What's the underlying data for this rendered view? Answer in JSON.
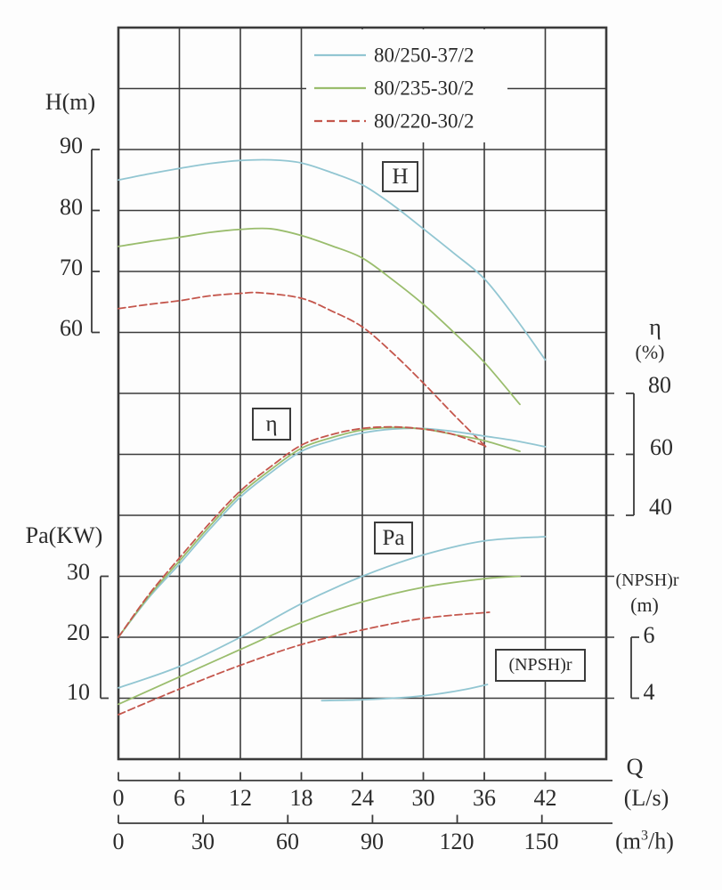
{
  "legend": {
    "items": [
      {
        "label": "80/250-37/2",
        "color": "#92c6d2",
        "dash": "solid"
      },
      {
        "label": "80/235-30/2",
        "color": "#9abd6d",
        "dash": "solid"
      },
      {
        "label": "80/220-30/2",
        "color": "#c4564c",
        "dash": "dashed"
      }
    ]
  },
  "axes": {
    "h": {
      "title": "H(m)",
      "ticks": [
        90,
        80,
        70,
        60
      ]
    },
    "pa": {
      "title": "Pa(KW)",
      "ticks": [
        30,
        20,
        10
      ]
    },
    "eta": {
      "title": "η",
      "unit": "(%)",
      "ticks": [
        80,
        60,
        40
      ]
    },
    "npsh": {
      "title": "(NPSH)r",
      "unit": "(m)",
      "ticks": [
        6,
        4
      ]
    },
    "q_ls": {
      "title": "Q",
      "unit": "(L/s)",
      "ticks": [
        0,
        6,
        12,
        18,
        24,
        30,
        36,
        42
      ]
    },
    "q_m3h": {
      "unit_prefix": "(m",
      "unit_sup": "3",
      "unit_suffix": "/h)",
      "ticks": [
        0,
        30,
        60,
        90,
        120,
        150
      ]
    }
  },
  "curve_labels": {
    "h": "H",
    "eta": "η",
    "pa": "Pa",
    "npsh": "(NPSH)r"
  },
  "chart_data": {
    "type": "line",
    "x_axis": {
      "label": "Q",
      "units": [
        "L/s",
        "m3/h"
      ],
      "range_ls": [
        0,
        48
      ]
    },
    "grid": "on",
    "panels": [
      {
        "key": "h",
        "quantity": "H",
        "unit": "m",
        "axis_ticks": [
          90,
          80,
          70,
          60
        ],
        "series": [
          {
            "model": "80/250-37/2",
            "points": [
              [
                0,
                85
              ],
              [
                3,
                86
              ],
              [
                6,
                86.9
              ],
              [
                9,
                87.7
              ],
              [
                12,
                88.2
              ],
              [
                15,
                88.3
              ],
              [
                18,
                87.8
              ],
              [
                21,
                86.2
              ],
              [
                24,
                84.2
              ],
              [
                27,
                80.9
              ],
              [
                30,
                77
              ],
              [
                33,
                73
              ],
              [
                36,
                68.8
              ],
              [
                39,
                62.5
              ],
              [
                42,
                55.5
              ]
            ]
          },
          {
            "model": "80/235-30/2",
            "points": [
              [
                0,
                74.1
              ],
              [
                3,
                74.9
              ],
              [
                6,
                75.6
              ],
              [
                9,
                76.4
              ],
              [
                12,
                76.9
              ],
              [
                15,
                77
              ],
              [
                18,
                75.9
              ],
              [
                21,
                74.2
              ],
              [
                24,
                72.2
              ],
              [
                27,
                68.6
              ],
              [
                30,
                64.6
              ],
              [
                33,
                60
              ],
              [
                36,
                55.1
              ],
              [
                39.5,
                48.2
              ]
            ]
          },
          {
            "model": "80/220-30/2",
            "points": [
              [
                0,
                63.9
              ],
              [
                3,
                64.6
              ],
              [
                6,
                65.2
              ],
              [
                9,
                66
              ],
              [
                12,
                66.4
              ],
              [
                14,
                66.5
              ],
              [
                18,
                65.6
              ],
              [
                21,
                63.5
              ],
              [
                24,
                60.9
              ],
              [
                27,
                56.6
              ],
              [
                30,
                51.7
              ],
              [
                33,
                46.5
              ],
              [
                36.3,
                41
              ]
            ]
          }
        ]
      },
      {
        "key": "eta",
        "quantity": "η",
        "unit": "%",
        "axis_ticks": [
          80,
          60,
          40
        ],
        "series": [
          {
            "model": "80/250-37/2",
            "points": [
              [
                0,
                0
              ],
              [
                3,
                13
              ],
              [
                6,
                24
              ],
              [
                9,
                35.5
              ],
              [
                12,
                46
              ],
              [
                15,
                54
              ],
              [
                18,
                61
              ],
              [
                21,
                64.5
              ],
              [
                24,
                67
              ],
              [
                27,
                68.3
              ],
              [
                30,
                68.5
              ],
              [
                33,
                67.5
              ],
              [
                36,
                66
              ],
              [
                39,
                64.5
              ],
              [
                42,
                62.5
              ]
            ]
          },
          {
            "model": "80/235-30/2",
            "points": [
              [
                0,
                0
              ],
              [
                3,
                13.5
              ],
              [
                6,
                25
              ],
              [
                9,
                36.5
              ],
              [
                12,
                47
              ],
              [
                15,
                55
              ],
              [
                18,
                62
              ],
              [
                21,
                65.5
              ],
              [
                24,
                68
              ],
              [
                27,
                68.8
              ],
              [
                30,
                68.3
              ],
              [
                33,
                66.5
              ],
              [
                36,
                64.5
              ],
              [
                39.5,
                61
              ]
            ]
          },
          {
            "model": "80/220-30/2",
            "points": [
              [
                0,
                0
              ],
              [
                3,
                14
              ],
              [
                6,
                26
              ],
              [
                9,
                37.5
              ],
              [
                12,
                48
              ],
              [
                15,
                56
              ],
              [
                18,
                63
              ],
              [
                21,
                66.5
              ],
              [
                24,
                68.5
              ],
              [
                27,
                69
              ],
              [
                30,
                68.3
              ],
              [
                33,
                66.5
              ],
              [
                36.3,
                62.5
              ]
            ]
          }
        ]
      },
      {
        "key": "pa",
        "quantity": "Pa",
        "unit": "KW",
        "axis_ticks": [
          30,
          20,
          10
        ],
        "series": [
          {
            "model": "80/250-37/2",
            "points": [
              [
                0,
                11.7
              ],
              [
                6,
                15.2
              ],
              [
                12,
                20
              ],
              [
                18,
                25.5
              ],
              [
                24,
                30
              ],
              [
                30,
                33.5
              ],
              [
                36,
                35.8
              ],
              [
                42,
                36.5
              ]
            ]
          },
          {
            "model": "80/235-30/2",
            "points": [
              [
                0,
                9
              ],
              [
                6,
                13.5
              ],
              [
                12,
                18
              ],
              [
                18,
                22.4
              ],
              [
                24,
                25.8
              ],
              [
                30,
                28.2
              ],
              [
                36,
                29.6
              ],
              [
                39.5,
                30
              ]
            ]
          },
          {
            "model": "80/220-30/2",
            "points": [
              [
                0,
                7.3
              ],
              [
                6,
                11.5
              ],
              [
                12,
                15.4
              ],
              [
                18,
                18.8
              ],
              [
                24,
                21.2
              ],
              [
                30,
                23.1
              ],
              [
                36.5,
                24.1
              ]
            ]
          }
        ]
      },
      {
        "key": "npsh",
        "quantity": "(NPSH)r",
        "unit": "m",
        "axis_ticks": [
          6,
          4
        ],
        "series": [
          {
            "model": "80/250-37/2",
            "points": [
              [
                20,
                3.92
              ],
              [
                24,
                3.95
              ],
              [
                28,
                4.02
              ],
              [
                31,
                4.12
              ],
              [
                34,
                4.28
              ],
              [
                36.3,
                4.45
              ]
            ]
          }
        ]
      }
    ]
  }
}
